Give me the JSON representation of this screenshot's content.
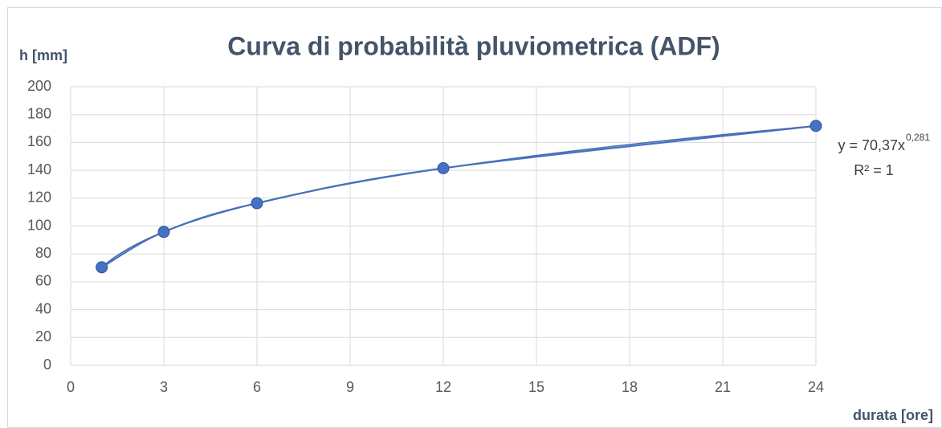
{
  "chart_data": {
    "type": "scatter-line",
    "title": "Curva di probabilità pluviometrica (ADF)",
    "y_label": "h [mm]",
    "x_label": "durata [ore]",
    "x": [
      1,
      3,
      6,
      12,
      24
    ],
    "series": [
      {
        "name": "h",
        "color": "#4472c4",
        "values": [
          70.4,
          95.8,
          116.4,
          141.5,
          171.9
        ]
      }
    ],
    "trendline": {
      "a": 70.37,
      "b": 0.281,
      "equation": "y = 70,37x",
      "exponent": "0,281",
      "r2": "R² = 1"
    },
    "xlim": [
      0,
      24
    ],
    "xticks": [
      0,
      3,
      6,
      9,
      12,
      15,
      18,
      21,
      24
    ],
    "ylim": [
      0,
      200
    ],
    "yticks": [
      0,
      20,
      40,
      60,
      80,
      100,
      120,
      140,
      160,
      180,
      200
    ],
    "grid": true
  }
}
